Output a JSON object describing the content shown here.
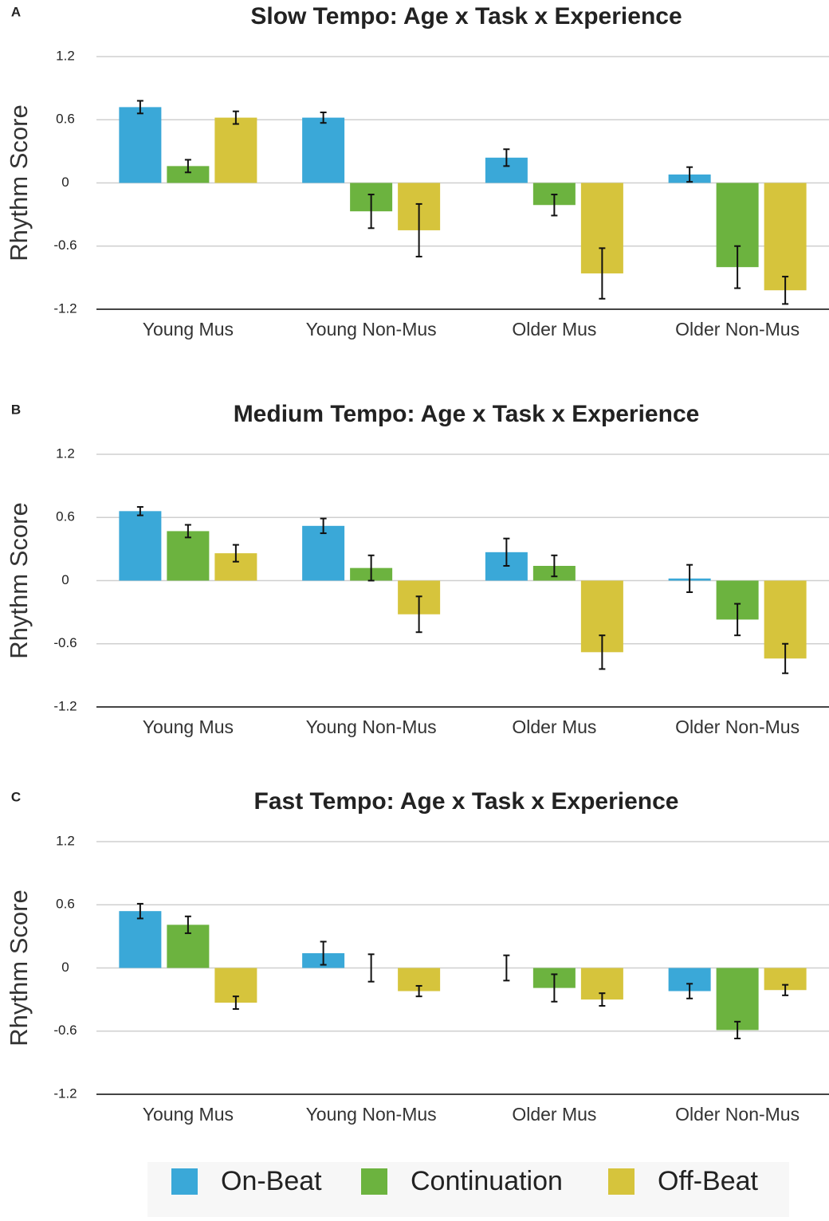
{
  "legend": [
    {
      "name": "On-Beat",
      "color": "#3aa8d8"
    },
    {
      "name": "Continuation",
      "color": "#6cb33f"
    },
    {
      "name": "Off-Beat",
      "color": "#d6c43c"
    }
  ],
  "chart_data": [
    {
      "type": "bar",
      "panel_label": "A",
      "title": "Slow Tempo: Age x Task x Experience",
      "ylabel": "Rhythm Score",
      "categories": [
        "Young Mus",
        "Young Non-Mus",
        "Older Mus",
        "Older Non-Mus"
      ],
      "series": [
        {
          "values": [
            0.72,
            0.62,
            0.24,
            0.08
          ],
          "errors": [
            0.06,
            0.05,
            0.08,
            0.07
          ]
        },
        {
          "values": [
            0.16,
            -0.27,
            -0.21,
            -0.8
          ],
          "errors": [
            0.06,
            0.16,
            0.1,
            0.2
          ]
        },
        {
          "values": [
            0.62,
            -0.45,
            -0.86,
            -1.02
          ],
          "errors": [
            0.06,
            0.25,
            0.24,
            0.13
          ]
        }
      ],
      "ylim": [
        -1.2,
        1.2
      ],
      "yticks": [
        -1.2,
        -0.6,
        0,
        0.6,
        1.2
      ],
      "grid": true
    },
    {
      "type": "bar",
      "panel_label": "B",
      "title": "Medium Tempo: Age x Task x Experience",
      "ylabel": "Rhythm Score",
      "categories": [
        "Young Mus",
        "Young Non-Mus",
        "Older Mus",
        "Older Non-Mus"
      ],
      "series": [
        {
          "values": [
            0.66,
            0.52,
            0.27,
            0.02
          ],
          "errors": [
            0.04,
            0.07,
            0.13,
            0.13
          ]
        },
        {
          "values": [
            0.47,
            0.12,
            0.14,
            -0.37
          ],
          "errors": [
            0.06,
            0.12,
            0.1,
            0.15
          ]
        },
        {
          "values": [
            0.26,
            -0.32,
            -0.68,
            -0.74
          ],
          "errors": [
            0.08,
            0.17,
            0.16,
            0.14
          ]
        }
      ],
      "ylim": [
        -1.2,
        1.2
      ],
      "yticks": [
        -1.2,
        -0.6,
        0,
        0.6,
        1.2
      ],
      "grid": true
    },
    {
      "type": "bar",
      "panel_label": "C",
      "title": "Fast Tempo: Age x Task x Experience",
      "ylabel": "Rhythm Score",
      "categories": [
        "Young Mus",
        "Young Non-Mus",
        "Older Mus",
        "Older Non-Mus"
      ],
      "series": [
        {
          "values": [
            0.54,
            0.14,
            0.0,
            -0.22
          ],
          "errors": [
            0.07,
            0.11,
            0.12,
            0.07
          ]
        },
        {
          "values": [
            0.41,
            0.0,
            -0.19,
            -0.59
          ],
          "errors": [
            0.08,
            0.13,
            0.13,
            0.08
          ]
        },
        {
          "values": [
            -0.33,
            -0.22,
            -0.3,
            -0.21
          ],
          "errors": [
            0.06,
            0.05,
            0.06,
            0.05
          ]
        }
      ],
      "ylim": [
        -1.2,
        1.2
      ],
      "yticks": [
        -1.2,
        -0.6,
        0,
        0.6,
        1.2
      ],
      "grid": true
    }
  ]
}
